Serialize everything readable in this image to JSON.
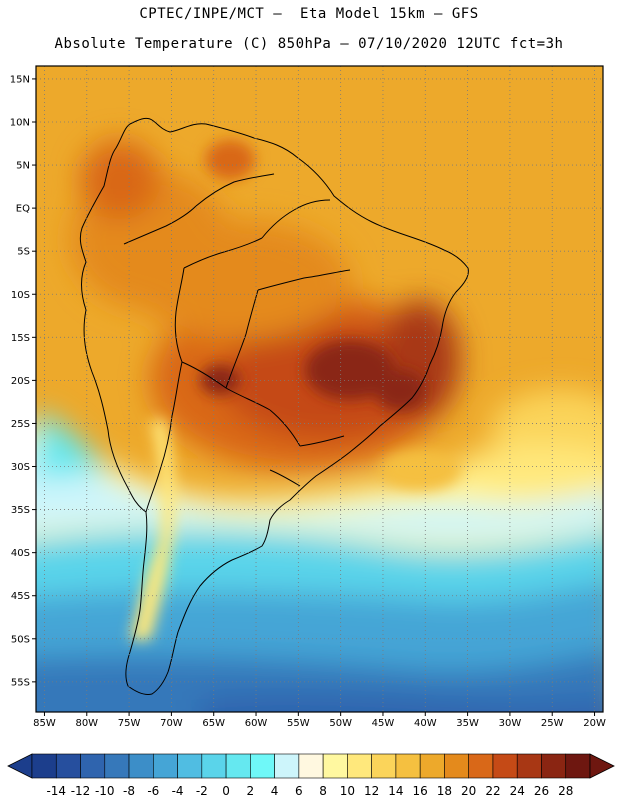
{
  "header": {
    "title_line1": "CPTEC/INPE/MCT –  Eta Model 15km – GFS",
    "title_line2": "Absolute Temperature (C) 850hPa – 07/10/2020 12UTC fct=3h"
  },
  "map": {
    "lon_range": [
      -86,
      -19
    ],
    "lat_range": [
      -58.5,
      16.5
    ],
    "x_ticks": [
      {
        "value": -85,
        "label": "85W"
      },
      {
        "value": -80,
        "label": "80W"
      },
      {
        "value": -75,
        "label": "75W"
      },
      {
        "value": -70,
        "label": "70W"
      },
      {
        "value": -65,
        "label": "65W"
      },
      {
        "value": -60,
        "label": "60W"
      },
      {
        "value": -55,
        "label": "55W"
      },
      {
        "value": -50,
        "label": "50W"
      },
      {
        "value": -45,
        "label": "45W"
      },
      {
        "value": -40,
        "label": "40W"
      },
      {
        "value": -35,
        "label": "35W"
      },
      {
        "value": -30,
        "label": "30W"
      },
      {
        "value": -25,
        "label": "25W"
      },
      {
        "value": -20,
        "label": "20W"
      }
    ],
    "y_ticks": [
      {
        "value": 15,
        "label": "15N"
      },
      {
        "value": 10,
        "label": "10N"
      },
      {
        "value": 5,
        "label": "5N"
      },
      {
        "value": 0,
        "label": "EQ"
      },
      {
        "value": -5,
        "label": "5S"
      },
      {
        "value": -10,
        "label": "10S"
      },
      {
        "value": -15,
        "label": "15S"
      },
      {
        "value": -20,
        "label": "20S"
      },
      {
        "value": -25,
        "label": "25S"
      },
      {
        "value": -30,
        "label": "30S"
      },
      {
        "value": -35,
        "label": "35S"
      },
      {
        "value": -40,
        "label": "40S"
      },
      {
        "value": -45,
        "label": "45S"
      },
      {
        "value": -50,
        "label": "50S"
      },
      {
        "value": -55,
        "label": "55S"
      }
    ],
    "grid": "dotted"
  },
  "colorbar": {
    "labels": [
      "-14",
      "-12",
      "-10",
      "-8",
      "-6",
      "-4",
      "-2",
      "0",
      "2",
      "4",
      "6",
      "8",
      "10",
      "12",
      "14",
      "16",
      "18",
      "20",
      "22",
      "24",
      "26",
      "28"
    ],
    "colors": [
      "#1c3e8c",
      "#264f9e",
      "#2f64ae",
      "#3678ba",
      "#3c8ec8",
      "#45a5d6",
      "#50bde2",
      "#5ad4ea",
      "#65e8f0",
      "#6ff8f8",
      "#cdf5fb",
      "#fff8e0",
      "#fff8a0",
      "#ffe87c",
      "#fbd45a",
      "#f5c040",
      "#eda92b",
      "#e48a1c",
      "#d96818",
      "#c54a16",
      "#a83714",
      "#8a2512",
      "#6e1710"
    ]
  }
}
